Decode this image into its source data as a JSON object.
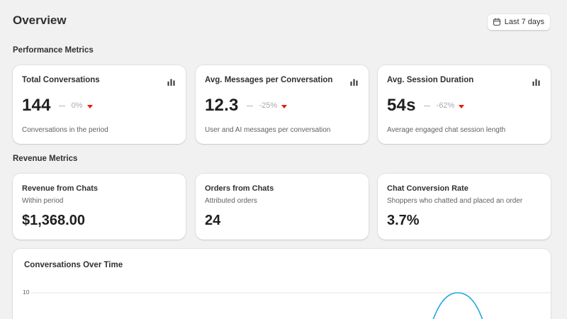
{
  "header": {
    "title": "Overview",
    "date_range_label": "Last 7 days"
  },
  "performance": {
    "title": "Performance Metrics",
    "cards": [
      {
        "title": "Total Conversations",
        "value": "144",
        "change": "0%",
        "description": "Conversations in the period",
        "trend": "down"
      },
      {
        "title": "Avg. Messages per Conversation",
        "value": "12.3",
        "change": "-25%",
        "description": "User and AI messages per conversation",
        "trend": "down"
      },
      {
        "title": "Avg. Session Duration",
        "value": "54s",
        "change": "-62%",
        "description": "Average engaged chat session length",
        "trend": "down"
      }
    ]
  },
  "revenue": {
    "title": "Revenue Metrics",
    "cards": [
      {
        "title": "Revenue from Chats",
        "subtitle": "Within period",
        "value": "$1,368.00"
      },
      {
        "title": "Orders from Chats",
        "subtitle": "Attributed orders",
        "value": "24"
      },
      {
        "title": "Chat Conversion Rate",
        "subtitle": "Shoppers who chatted and placed an order",
        "value": "3.7%"
      }
    ]
  },
  "chart": {
    "title": "Conversations Over Time",
    "y_tick_label": "10"
  },
  "chart_data": {
    "type": "line",
    "title": "Conversations Over Time",
    "yticks": [
      10
    ],
    "y_visible_top": 10,
    "series": [
      {
        "color": "#1ea7e1",
        "visible_peak": 10
      }
    ]
  },
  "colors": {
    "background": "#f1f1f1",
    "card": "#ffffff",
    "text": "#303030",
    "muted": "#616161",
    "negative": "#e51c00",
    "line": "#1ea7e1"
  },
  "icons": {
    "date": "calendar-icon",
    "metric": "bar-chart-icon",
    "trend_down": "caret-down-icon"
  }
}
